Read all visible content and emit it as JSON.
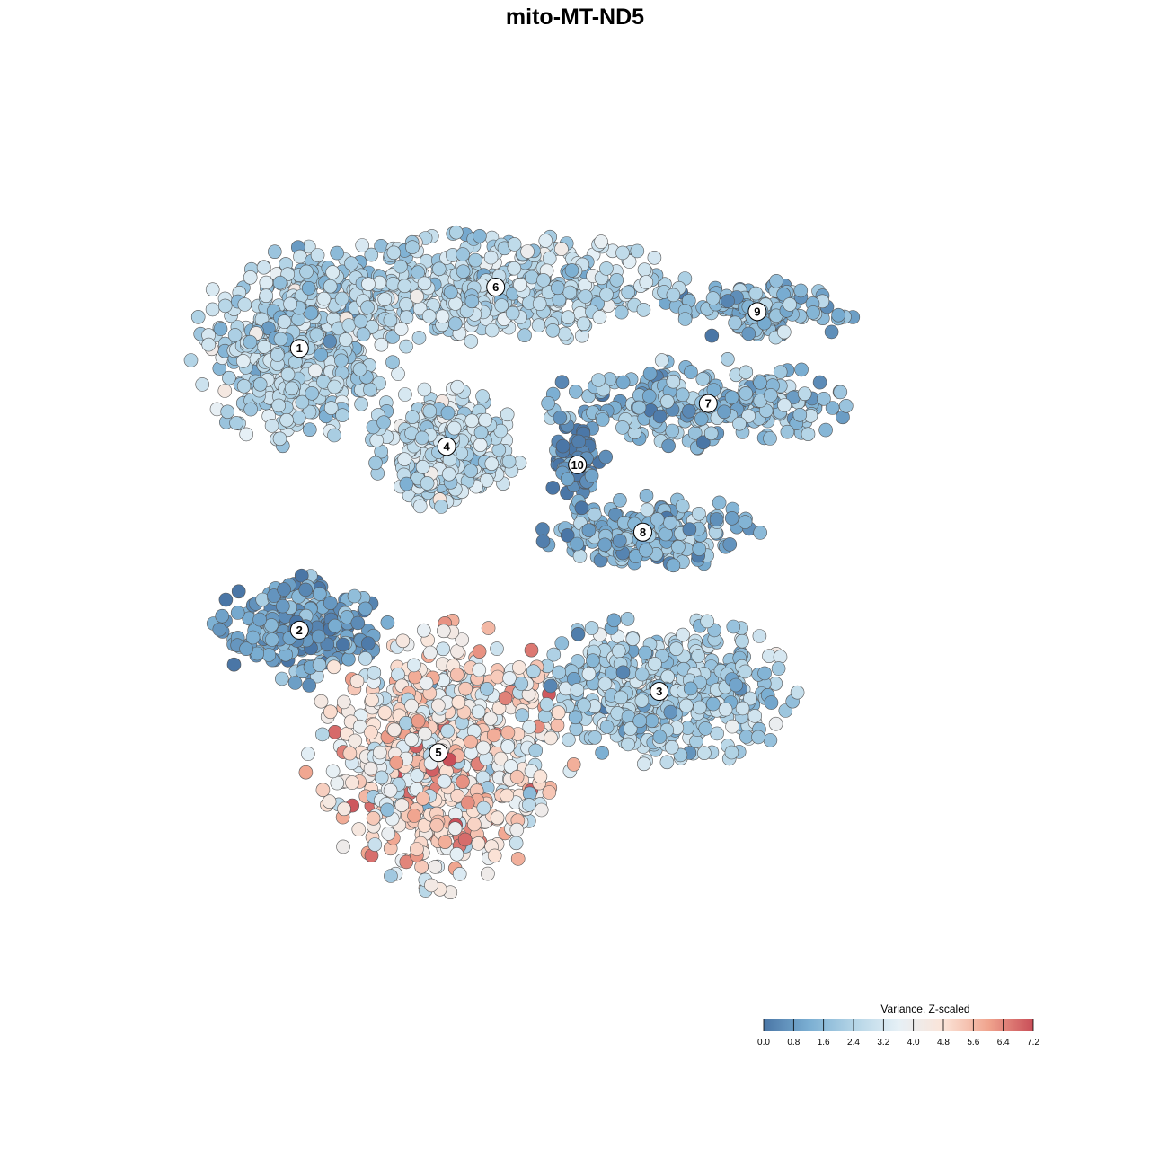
{
  "chart_data": {
    "type": "scatter",
    "title": "mito-MT-ND5",
    "xlabel": "",
    "ylabel": "",
    "grid": false,
    "colorbar": {
      "title": "Variance, Z-scaled",
      "min": 0.0,
      "max": 7.2,
      "ticks": [
        0.0,
        0.8,
        1.6,
        2.4,
        3.2,
        4.0,
        4.8,
        5.6,
        6.4,
        7.2
      ],
      "tick_labels": [
        "0.0",
        "0.8",
        "1.6",
        "2.4",
        "3.2",
        "4.0",
        "4.8",
        "5.6",
        "6.4",
        "7.2"
      ],
      "colors": [
        "#4a76a6",
        "#7aaed2",
        "#b3d4e6",
        "#e6f0f6",
        "#fbe4d8",
        "#f0a48e",
        "#c94e58"
      ],
      "placement": "bottom-right"
    },
    "clusters": [
      {
        "label": "1",
        "cx": 0.13,
        "cy": 0.63,
        "rx": 0.13,
        "ry": 0.17,
        "value": 2.4,
        "count": 520
      },
      {
        "label": "6",
        "cx": 0.37,
        "cy": 0.73,
        "rx": 0.23,
        "ry": 0.09,
        "value": 2.5,
        "count": 480
      },
      {
        "label": "4",
        "cx": 0.31,
        "cy": 0.47,
        "rx": 0.09,
        "ry": 0.1,
        "value": 2.6,
        "count": 300
      },
      {
        "label": "9",
        "cx": 0.69,
        "cy": 0.69,
        "rx": 0.12,
        "ry": 0.05,
        "value": 1.5,
        "count": 140
      },
      {
        "label": "7",
        "cx": 0.63,
        "cy": 0.54,
        "rx": 0.2,
        "ry": 0.07,
        "value": 1.6,
        "count": 260
      },
      {
        "label": "10",
        "cx": 0.47,
        "cy": 0.44,
        "rx": 0.035,
        "ry": 0.07,
        "value": 0.5,
        "count": 70
      },
      {
        "label": "8",
        "cx": 0.55,
        "cy": 0.33,
        "rx": 0.14,
        "ry": 0.06,
        "value": 1.5,
        "count": 230
      },
      {
        "label": "2",
        "cx": 0.13,
        "cy": 0.17,
        "rx": 0.11,
        "ry": 0.09,
        "value": 0.9,
        "count": 210
      },
      {
        "label": "3",
        "cx": 0.57,
        "cy": 0.07,
        "rx": 0.17,
        "ry": 0.12,
        "value": 2.2,
        "count": 480
      },
      {
        "label": "5",
        "cx": 0.3,
        "cy": -0.03,
        "rx": 0.16,
        "ry": 0.22,
        "value": 4.5,
        "count": 700
      }
    ],
    "x": [
      0,
      1
    ],
    "y": [
      -0.4,
      0.92
    ]
  }
}
